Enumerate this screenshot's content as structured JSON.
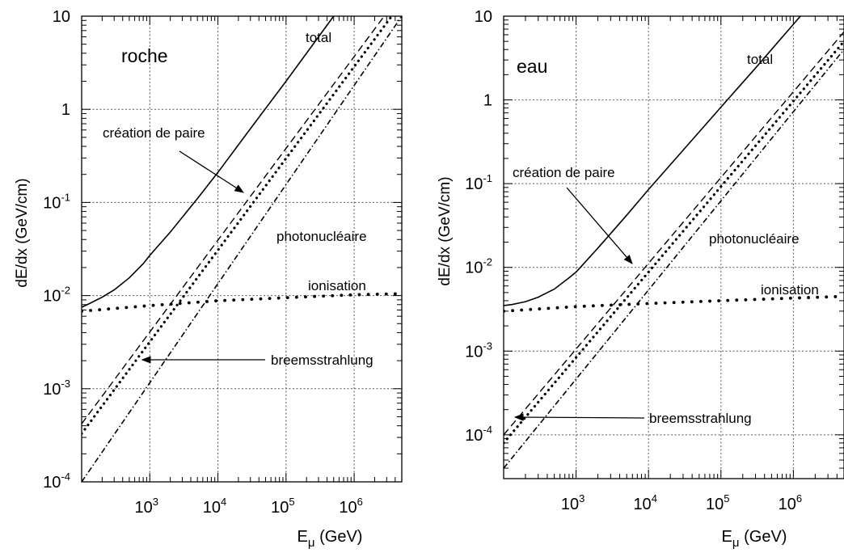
{
  "chart_data": [
    {
      "type": "line",
      "title": "roche",
      "xlabel_main": "E",
      "xlabel_sub": "μ",
      "xlabel_unit": " (GeV)",
      "ylabel": "dE/dx (GeV/cm)",
      "xscale": "log",
      "yscale": "log",
      "xlim": [
        100,
        5000000
      ],
      "ylim": [
        0.0001,
        10
      ],
      "grid": true,
      "x_ticks": [
        {
          "value": 1000,
          "base": "10",
          "exp": "3"
        },
        {
          "value": 10000,
          "base": "10",
          "exp": "4"
        },
        {
          "value": 100000,
          "base": "10",
          "exp": "5"
        },
        {
          "value": 1000000,
          "base": "10",
          "exp": "6"
        }
      ],
      "y_ticks": [
        {
          "value": 0.0001,
          "base": "10",
          "exp": "-4"
        },
        {
          "value": 0.001,
          "base": "10",
          "exp": "-3"
        },
        {
          "value": 0.01,
          "base": "10",
          "exp": "-2"
        },
        {
          "value": 0.1,
          "base": "10",
          "exp": "-1"
        },
        {
          "value": 1,
          "base": "1",
          "exp": ""
        },
        {
          "value": 10,
          "base": "10",
          "exp": ""
        }
      ],
      "series": [
        {
          "key": "total",
          "style": "solid",
          "x": [
            100,
            130,
            200,
            300,
            500,
            800,
            1000,
            2000,
            5000,
            10000,
            30000,
            100000,
            300000,
            700000
          ],
          "y": [
            0.0075,
            0.0082,
            0.0096,
            0.0115,
            0.0155,
            0.022,
            0.027,
            0.048,
            0.11,
            0.21,
            0.62,
            2.0,
            6.0,
            14.0
          ]
        },
        {
          "key": "création de paire",
          "style": "dashed",
          "x": [
            100,
            5000000
          ],
          "y": [
            0.00042,
            18.0
          ]
        },
        {
          "key": "breemsstrahlung",
          "style": "dotted",
          "x": [
            100,
            5000000
          ],
          "y": [
            0.00033,
            14.0
          ]
        },
        {
          "key": "photonucléaire",
          "style": "dashdot",
          "x": [
            100,
            5000000
          ],
          "y": [
            0.0001,
            10.0
          ]
        },
        {
          "key": "ionisation",
          "style": "dots",
          "x": [
            100,
            1000,
            10000,
            100000,
            1000000,
            5000000
          ],
          "y": [
            0.0068,
            0.0078,
            0.0088,
            0.0095,
            0.0102,
            0.0105
          ]
        }
      ],
      "annotations": [
        {
          "key": "total",
          "text": "total"
        },
        {
          "key": "pair",
          "text": "création de paire"
        },
        {
          "key": "photo",
          "text": "photonucléaire"
        },
        {
          "key": "ion",
          "text": "ionisation"
        },
        {
          "key": "brems",
          "text": "breemsstrahlung"
        }
      ]
    },
    {
      "type": "line",
      "title": "eau",
      "xlabel_main": "E",
      "xlabel_sub": "μ",
      "xlabel_unit": " (GeV)",
      "ylabel": "dE/dx (GeV/cm)",
      "xscale": "log",
      "yscale": "log",
      "xlim": [
        100,
        5000000
      ],
      "ylim": [
        3e-05,
        10
      ],
      "grid": true,
      "x_ticks": [
        {
          "value": 1000,
          "base": "10",
          "exp": "3"
        },
        {
          "value": 10000,
          "base": "10",
          "exp": "4"
        },
        {
          "value": 100000,
          "base": "10",
          "exp": "5"
        },
        {
          "value": 1000000,
          "base": "10",
          "exp": "6"
        }
      ],
      "y_ticks": [
        {
          "value": 0.0001,
          "base": "10",
          "exp": "-4"
        },
        {
          "value": 0.001,
          "base": "10",
          "exp": "-3"
        },
        {
          "value": 0.01,
          "base": "10",
          "exp": "-2"
        },
        {
          "value": 0.1,
          "base": "10",
          "exp": "-1"
        },
        {
          "value": 1,
          "base": "1",
          "exp": ""
        },
        {
          "value": 10,
          "base": "10",
          "exp": ""
        }
      ],
      "series": [
        {
          "key": "total",
          "style": "solid",
          "x": [
            100,
            130,
            200,
            300,
            500,
            800,
            1000,
            2000,
            5000,
            10000,
            30000,
            100000,
            300000,
            1000000,
            5000000
          ],
          "y": [
            0.0035,
            0.0036,
            0.0039,
            0.0044,
            0.0055,
            0.0075,
            0.0088,
            0.017,
            0.042,
            0.085,
            0.25,
            0.82,
            2.4,
            8.0,
            40.0
          ]
        },
        {
          "key": "création de paire",
          "style": "dashed",
          "x": [
            100,
            5000000
          ],
          "y": [
            0.0001,
            6.5
          ]
        },
        {
          "key": "breemsstrahlung",
          "style": "dotted",
          "x": [
            100,
            5000000
          ],
          "y": [
            8e-05,
            5.0
          ]
        },
        {
          "key": "photonucléaire",
          "style": "dashdot",
          "x": [
            100,
            5000000
          ],
          "y": [
            4e-05,
            4.0
          ]
        },
        {
          "key": "ionisation",
          "style": "dots",
          "x": [
            100,
            1000,
            10000,
            100000,
            1000000,
            5000000
          ],
          "y": [
            0.003,
            0.0034,
            0.0037,
            0.004,
            0.0043,
            0.0045
          ]
        }
      ],
      "annotations": [
        {
          "key": "total",
          "text": "total"
        },
        {
          "key": "pair",
          "text": "création de paire"
        },
        {
          "key": "photo",
          "text": "photonucléaire"
        },
        {
          "key": "ion",
          "text": "ionisation"
        },
        {
          "key": "brems",
          "text": "breemsstrahlung"
        }
      ]
    }
  ]
}
